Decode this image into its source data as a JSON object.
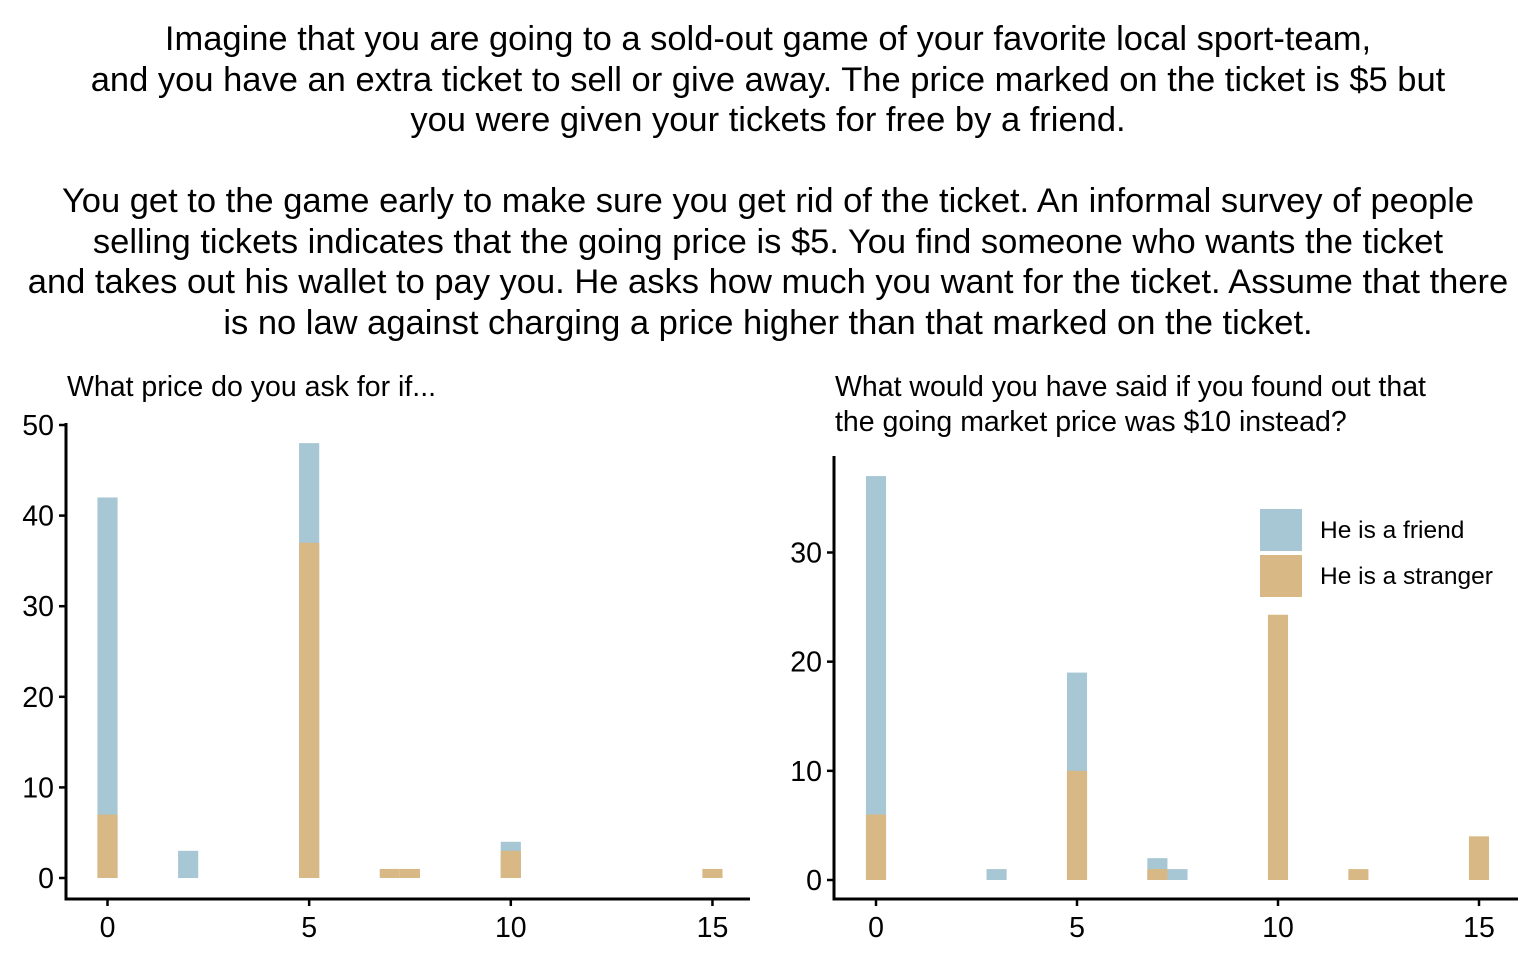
{
  "scenario": {
    "paragraph1": [
      "Imagine that you are going to a sold-out game of your favorite local sport-team,",
      "and you have an extra ticket to sell or give away. The price marked on the ticket is $5 but",
      "you were given your tickets for free by a friend."
    ],
    "paragraph2": [
      "You get to the game early to make sure you get rid of the ticket. An informal survey of people",
      "selling tickets indicates that the going price is $5. You find someone who wants the ticket",
      "and takes out his wallet to pay you. He asks how much you want for the ticket. Assume that there",
      "is no law against charging a price higher than that marked on the ticket."
    ]
  },
  "chart_data": [
    {
      "type": "bar",
      "subtype": "overlaid-histogram",
      "title": [
        "What price do you ask for if..."
      ],
      "xlabel": "",
      "ylabel": "",
      "xlim": [
        -0.6,
        15.95
      ],
      "ylim": [
        0,
        50
      ],
      "xticks": [
        0,
        5,
        10,
        15
      ],
      "yticks": [
        0,
        10,
        20,
        30,
        40,
        50
      ],
      "bin_width": 0.5,
      "grid": false,
      "series": [
        {
          "name": "He is a friend",
          "color": "#a8c7d4",
          "bins": [
            {
              "x": 0,
              "y": 42
            },
            {
              "x": 2,
              "y": 3
            },
            {
              "x": 5,
              "y": 48
            },
            {
              "x": 10,
              "y": 4
            }
          ]
        },
        {
          "name": "He is a stranger",
          "color": "#d8b885",
          "bins": [
            {
              "x": 0,
              "y": 7
            },
            {
              "x": 5,
              "y": 37
            },
            {
              "x": 7,
              "y": 1
            },
            {
              "x": 7.5,
              "y": 1
            },
            {
              "x": 10,
              "y": 3
            },
            {
              "x": 15,
              "y": 1
            }
          ]
        }
      ]
    },
    {
      "type": "bar",
      "subtype": "overlaid-histogram",
      "title": [
        "What would you have said if you found out that",
        "the going market price was $10 instead?"
      ],
      "xlabel": "",
      "ylabel": "",
      "xlim": [
        -0.6,
        15.95
      ],
      "ylim": [
        0,
        38
      ],
      "xticks": [
        0,
        5,
        10,
        15
      ],
      "yticks": [
        0,
        10,
        20,
        30
      ],
      "bin_width": 0.5,
      "grid": false,
      "legend": {
        "position": "top-right",
        "entries": [
          {
            "label": "He is a friend",
            "color": "#a8c7d4"
          },
          {
            "label": "He is a stranger",
            "color": "#d8b885"
          }
        ]
      },
      "series": [
        {
          "name": "He is a friend",
          "color": "#a8c7d4",
          "bins": [
            {
              "x": 0,
              "y": 37
            },
            {
              "x": 3,
              "y": 1
            },
            {
              "x": 5,
              "y": 19
            },
            {
              "x": 7,
              "y": 2
            },
            {
              "x": 7.5,
              "y": 1
            }
          ]
        },
        {
          "name": "He is a stranger",
          "color": "#d8b885",
          "bins": [
            {
              "x": 0,
              "y": 6
            },
            {
              "x": 5,
              "y": 10
            },
            {
              "x": 7,
              "y": 1
            },
            {
              "x": 10,
              "y": 24.3
            },
            {
              "x": 12,
              "y": 1
            },
            {
              "x": 15,
              "y": 4
            }
          ]
        }
      ]
    }
  ]
}
